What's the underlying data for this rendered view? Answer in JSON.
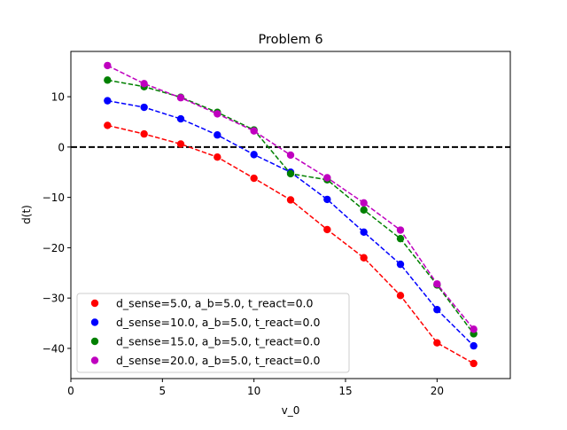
{
  "chart_data": {
    "type": "line",
    "title": "Problem 6",
    "xlabel": "v_0",
    "ylabel": "d(t)",
    "xlim": [
      0,
      24
    ],
    "ylim": [
      -46,
      19
    ],
    "xticks": [
      0,
      5,
      10,
      15,
      20
    ],
    "yticks": [
      -40,
      -30,
      -20,
      -10,
      0,
      10
    ],
    "xtick_labels": [
      "0",
      "5",
      "10",
      "15",
      "20"
    ],
    "ytick_labels": [
      "−40",
      "−30",
      "−20",
      "−10",
      "0",
      "10"
    ],
    "grid": false,
    "legend_position": "lower-left",
    "reference_line": {
      "y": 0,
      "style": "dashed",
      "color": "#000000"
    },
    "x": [
      2,
      4,
      6,
      8,
      10,
      12,
      14,
      16,
      18,
      20,
      22
    ],
    "series": [
      {
        "name": "d_sense=5.0, a_b=5.0, t_react=0.0",
        "color": "#ff0000",
        "values": [
          4.3,
          2.6,
          0.6,
          -2.0,
          -6.2,
          -10.5,
          -16.4,
          -22.0,
          -29.5,
          -38.9,
          -43.0
        ]
      },
      {
        "name": "d_sense=10.0, a_b=5.0, t_react=0.0",
        "color": "#0000ff",
        "values": [
          9.2,
          7.9,
          5.6,
          2.4,
          -1.5,
          -5.0,
          -10.4,
          -16.9,
          -23.3,
          -32.3,
          -39.5
        ]
      },
      {
        "name": "d_sense=15.0, a_b=5.0, t_react=0.0",
        "color": "#008000",
        "values": [
          13.3,
          12.0,
          9.9,
          6.9,
          3.4,
          -5.3,
          -6.5,
          -12.5,
          -18.2,
          -27.4,
          -37.1
        ]
      },
      {
        "name": "d_sense=20.0, a_b=5.0, t_react=0.0",
        "color": "#bf00bf",
        "values": [
          16.2,
          12.6,
          9.8,
          6.6,
          3.2,
          -1.6,
          -6.1,
          -11.1,
          -16.5,
          -27.2,
          -36.2
        ]
      }
    ]
  }
}
